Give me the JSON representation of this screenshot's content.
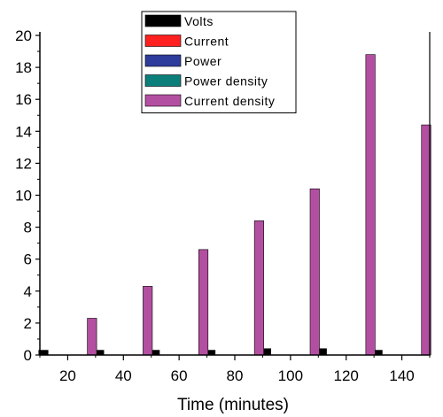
{
  "chart_data": {
    "type": "bar",
    "title": "",
    "xlabel": "Time (minutes)",
    "ylabel": "",
    "x": [
      20,
      40,
      60,
      80,
      100,
      120,
      140
    ],
    "xlim": [
      10,
      150
    ],
    "ylim": [
      0,
      20
    ],
    "yticks": [
      0,
      2,
      4,
      6,
      8,
      10,
      12,
      14,
      16,
      18,
      20
    ],
    "xticks": [
      20,
      40,
      60,
      80,
      100,
      120,
      140
    ],
    "legend_position": "top-right",
    "grid": false,
    "series": [
      {
        "name": "Volts",
        "color": "#000000",
        "values": [
          0.3,
          0.3,
          0.3,
          0.3,
          0.4,
          0.4,
          0.3
        ]
      },
      {
        "name": "Current",
        "color": "#ff2020",
        "values": [
          0,
          0,
          0,
          0,
          0,
          0,
          0
        ]
      },
      {
        "name": "Power",
        "color": "#2e3c9c",
        "values": [
          0,
          0,
          0,
          0,
          0,
          0,
          0
        ]
      },
      {
        "name": "Power density",
        "color": "#0d7f7a",
        "values": [
          0,
          0,
          0,
          0,
          0,
          0,
          0
        ]
      },
      {
        "name": "Current density",
        "color": "#b34fa1",
        "values": [
          2.3,
          4.3,
          6.6,
          8.4,
          10.4,
          18.8,
          14.4
        ]
      }
    ]
  }
}
